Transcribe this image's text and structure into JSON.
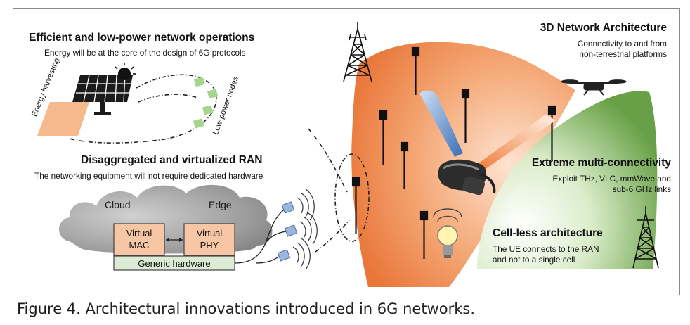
{
  "figure": {
    "efficient": {
      "title": "Efficient and low-power network operations",
      "subtitle": "Energy will be at the core of the design of 6G protocols",
      "energy_harvesting": "Energy harvesting",
      "low_power_nodes": "Low-power nodes"
    },
    "ran": {
      "title": "Disaggregated and virtualized RAN",
      "subtitle": "The networking equipment will not require dedicated hardware",
      "cloud": "Cloud",
      "edge": "Edge",
      "virtual_mac": "Virtual MAC",
      "virtual_phy": "Virtual PHY",
      "generic_hardware": "Generic hardware"
    },
    "arch3d": {
      "title": "3D Network Architecture",
      "line1": "Connectivity to and from",
      "line2": "non-terrestrial platforms"
    },
    "multi": {
      "title": "Extreme multi-connectivity",
      "line1": "Exploit THz, VLC, mmWave and",
      "line2": "sub-6 GHz links"
    },
    "cellless": {
      "title": "Cell-less architecture",
      "line1": "The UE connects to the RAN",
      "line2": "and not to a single cell"
    },
    "colors": {
      "orange": "#ee8a4e",
      "green": "#6fa84a",
      "cloud": "#8f8f8f",
      "box_fill": "#f7c7a5",
      "hw_fill": "#dcebd3",
      "node_green": "#a6d68d",
      "node_blue": "#9ab6e0"
    }
  },
  "caption": {
    "label": "Figure 4.",
    "text": "Architectural innovations introduced in 6G networks."
  }
}
